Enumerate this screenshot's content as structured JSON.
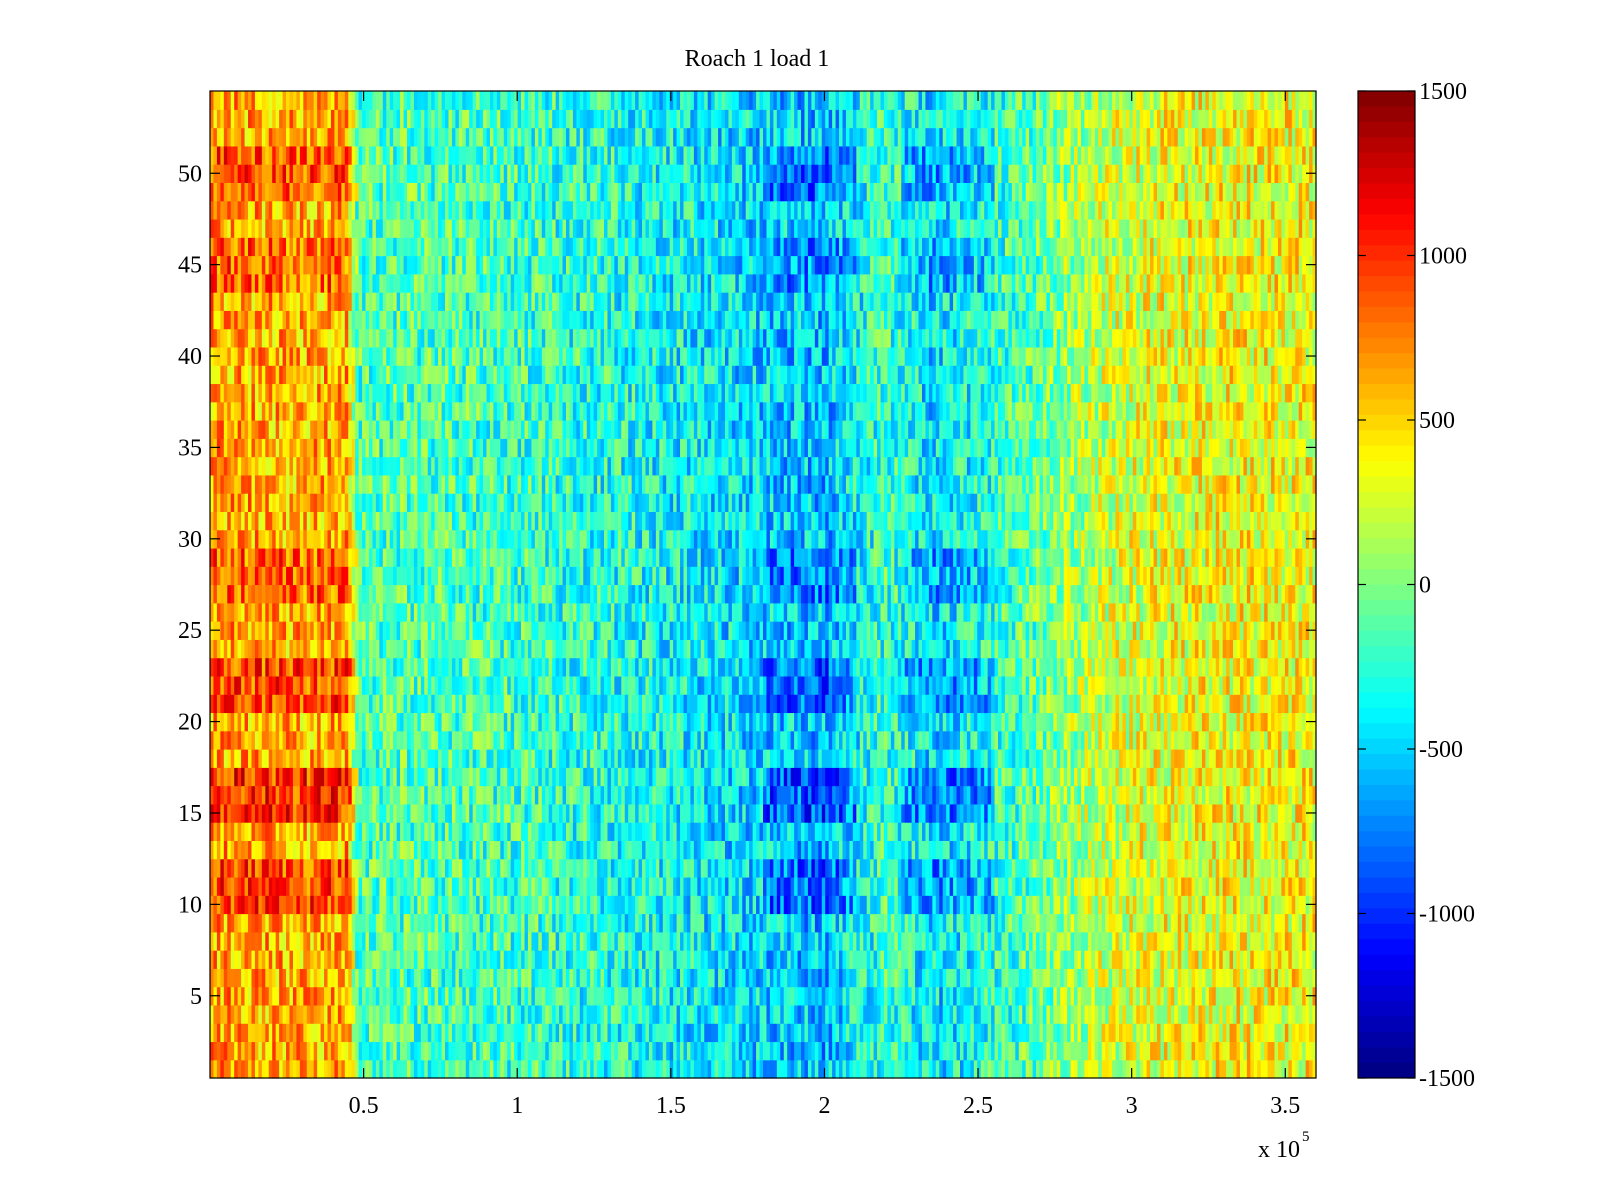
{
  "chart_data": {
    "type": "heatmap",
    "title": "Roach 1 load 1",
    "xlabel": "",
    "ylabel": "",
    "x_multiplier_base": "x 10",
    "x_multiplier_exponent": "5",
    "xlim": [
      0,
      3.6
    ],
    "ylim": [
      0.5,
      54.5
    ],
    "rows": 54,
    "x_ticks": [
      {
        "value": 0.5,
        "label": "0.5"
      },
      {
        "value": 1.0,
        "label": "1"
      },
      {
        "value": 1.5,
        "label": "1.5"
      },
      {
        "value": 2.0,
        "label": "2"
      },
      {
        "value": 2.5,
        "label": "2.5"
      },
      {
        "value": 3.0,
        "label": "3"
      },
      {
        "value": 3.5,
        "label": "3.5"
      }
    ],
    "y_ticks": [
      {
        "value": 5,
        "label": "5"
      },
      {
        "value": 10,
        "label": "10"
      },
      {
        "value": 15,
        "label": "15"
      },
      {
        "value": 20,
        "label": "20"
      },
      {
        "value": 25,
        "label": "25"
      },
      {
        "value": 30,
        "label": "30"
      },
      {
        "value": 35,
        "label": "35"
      },
      {
        "value": 40,
        "label": "40"
      },
      {
        "value": 45,
        "label": "45"
      },
      {
        "value": 50,
        "label": "50"
      }
    ],
    "colorbar": {
      "colormap": "jet",
      "clim": [
        -1500,
        1500
      ],
      "ticks": [
        {
          "value": 1500,
          "label": "1500"
        },
        {
          "value": 1000,
          "label": "1000"
        },
        {
          "value": 500,
          "label": "500"
        },
        {
          "value": 0,
          "label": "0"
        },
        {
          "value": -500,
          "label": "-500"
        },
        {
          "value": -1000,
          "label": "-1000"
        },
        {
          "value": -1500,
          "label": "-1500"
        }
      ]
    },
    "column_profile": [
      {
        "x": 0.0,
        "mean": 650
      },
      {
        "x": 0.15,
        "mean": 620
      },
      {
        "x": 0.3,
        "mean": 600
      },
      {
        "x": 0.45,
        "mean": 620
      },
      {
        "x": 0.48,
        "mean": -150
      },
      {
        "x": 0.7,
        "mean": -150
      },
      {
        "x": 1.0,
        "mean": -200
      },
      {
        "x": 1.4,
        "mean": -320
      },
      {
        "x": 1.85,
        "mean": -500
      },
      {
        "x": 2.0,
        "mean": -560
      },
      {
        "x": 2.1,
        "mean": -380
      },
      {
        "x": 2.2,
        "mean": -200
      },
      {
        "x": 2.35,
        "mean": -450
      },
      {
        "x": 2.5,
        "mean": -320
      },
      {
        "x": 2.7,
        "mean": -80
      },
      {
        "x": 2.9,
        "mean": 200
      },
      {
        "x": 3.1,
        "mean": 320
      },
      {
        "x": 3.35,
        "mean": 360
      },
      {
        "x": 3.6,
        "mean": 360
      }
    ],
    "hot_rows": [
      {
        "from": 10,
        "to": 12,
        "boost": 300
      },
      {
        "from": 15,
        "to": 17,
        "boost": 380
      },
      {
        "from": 21,
        "to": 23,
        "boost": 300
      },
      {
        "from": 27,
        "to": 29,
        "boost": 220
      },
      {
        "from": 44,
        "to": 46,
        "boost": 200
      },
      {
        "from": 49,
        "to": 51,
        "boost": 250
      }
    ],
    "noise_amplitude": 380
  }
}
